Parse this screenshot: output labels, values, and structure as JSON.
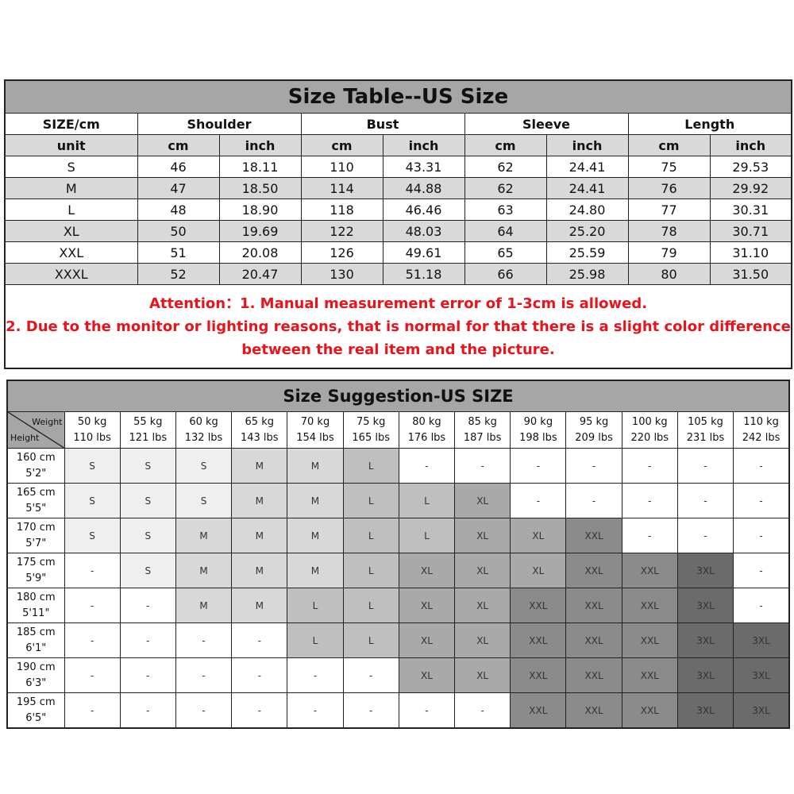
{
  "size_table": {
    "title": "Size Table--US Size",
    "corner_header": "SIZE/cm",
    "unit_label": "unit",
    "groups": [
      "Shoulder",
      "Bust",
      "Sleeve",
      "Length"
    ],
    "units": [
      "cm",
      "inch"
    ],
    "rows": [
      {
        "size": "S",
        "values": [
          "46",
          "18.11",
          "110",
          "43.31",
          "62",
          "24.41",
          "75",
          "29.53"
        ]
      },
      {
        "size": "M",
        "values": [
          "47",
          "18.50",
          "114",
          "44.88",
          "62",
          "24.41",
          "76",
          "29.92"
        ]
      },
      {
        "size": "L",
        "values": [
          "48",
          "18.90",
          "118",
          "46.46",
          "63",
          "24.80",
          "77",
          "30.31"
        ]
      },
      {
        "size": "XL",
        "values": [
          "50",
          "19.69",
          "122",
          "48.03",
          "64",
          "25.20",
          "78",
          "30.71"
        ]
      },
      {
        "size": "XXL",
        "values": [
          "51",
          "20.08",
          "126",
          "49.61",
          "65",
          "25.59",
          "79",
          "31.10"
        ]
      },
      {
        "size": "XXXL",
        "values": [
          "52",
          "20.47",
          "130",
          "51.18",
          "66",
          "25.98",
          "80",
          "31.50"
        ]
      }
    ],
    "attention": [
      "Attention：1. Manual measurement error of 1-3cm is allowed.",
      "2. Due to the monitor or lighting reasons, that is normal for that there is a slight color difference",
      "between the real item and the picture."
    ],
    "attention_color": "#e8141c"
  },
  "size_suggestion": {
    "title": "Size Suggestion-US SIZE",
    "corner_weight": "Weight",
    "corner_height": "Height",
    "weights": [
      {
        "kg": "50 kg",
        "lbs": "110 lbs"
      },
      {
        "kg": "55 kg",
        "lbs": "121 lbs"
      },
      {
        "kg": "60 kg",
        "lbs": "132 lbs"
      },
      {
        "kg": "65 kg",
        "lbs": "143 lbs"
      },
      {
        "kg": "70 kg",
        "lbs": "154 lbs"
      },
      {
        "kg": "75 kg",
        "lbs": "165 lbs"
      },
      {
        "kg": "80 kg",
        "lbs": "176 lbs"
      },
      {
        "kg": "85 kg",
        "lbs": "187 lbs"
      },
      {
        "kg": "90 kg",
        "lbs": "198 lbs"
      },
      {
        "kg": "95 kg",
        "lbs": "209 lbs"
      },
      {
        "kg": "100 kg",
        "lbs": "220 lbs"
      },
      {
        "kg": "105 kg",
        "lbs": "231 lbs"
      },
      {
        "kg": "110 kg",
        "lbs": "242 lbs"
      }
    ],
    "rows": [
      {
        "cm": "160 cm",
        "ft": "5'2\"",
        "sizes": [
          "S",
          "S",
          "S",
          "M",
          "M",
          "L",
          "-",
          "-",
          "-",
          "-",
          "-",
          "-",
          "-"
        ]
      },
      {
        "cm": "165 cm",
        "ft": "5'5\"",
        "sizes": [
          "S",
          "S",
          "S",
          "M",
          "M",
          "L",
          "L",
          "XL",
          "-",
          "-",
          "-",
          "-",
          "-"
        ]
      },
      {
        "cm": "170 cm",
        "ft": "5'7\"",
        "sizes": [
          "S",
          "S",
          "M",
          "M",
          "M",
          "L",
          "L",
          "XL",
          "XL",
          "XXL",
          "-",
          "-",
          "-"
        ]
      },
      {
        "cm": "175 cm",
        "ft": "5'9\"",
        "sizes": [
          "-",
          "S",
          "M",
          "M",
          "M",
          "L",
          "XL",
          "XL",
          "XL",
          "XXL",
          "XXL",
          "3XL",
          "-"
        ]
      },
      {
        "cm": "180 cm",
        "ft": "5'11\"",
        "sizes": [
          "-",
          "-",
          "M",
          "M",
          "L",
          "L",
          "XL",
          "XL",
          "XXL",
          "XXL",
          "XXL",
          "3XL",
          "-"
        ]
      },
      {
        "cm": "185 cm",
        "ft": "6'1\"",
        "sizes": [
          "-",
          "-",
          "-",
          "-",
          "L",
          "L",
          "XL",
          "XL",
          "XXL",
          "XXL",
          "XXL",
          "3XL",
          "3XL"
        ]
      },
      {
        "cm": "190 cm",
        "ft": "6'3\"",
        "sizes": [
          "-",
          "-",
          "-",
          "-",
          "-",
          "-",
          "XL",
          "XL",
          "XXL",
          "XXL",
          "XXL",
          "3XL",
          "3XL"
        ]
      },
      {
        "cm": "195 cm",
        "ft": "6'5\"",
        "sizes": [
          "-",
          "-",
          "-",
          "-",
          "-",
          "-",
          "-",
          "-",
          "XXL",
          "XXL",
          "XXL",
          "3XL",
          "3XL"
        ]
      }
    ],
    "size_colors": {
      "S": "#efefef",
      "M": "#d8d8d8",
      "L": "#bfbfbf",
      "XL": "#a9a9a9",
      "XXL": "#8b8b8b",
      "3XL": "#6b6b6b",
      "-": "#ffffff"
    }
  }
}
